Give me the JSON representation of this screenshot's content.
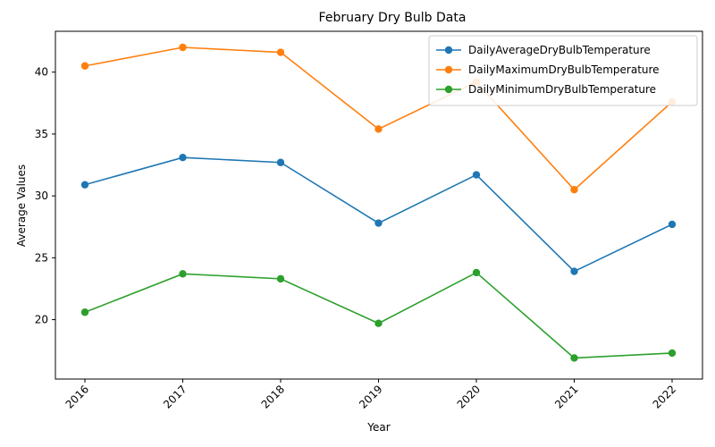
{
  "chart_data": {
    "type": "line",
    "title": "February Dry Bulb Data",
    "xlabel": "Year",
    "ylabel": "Average Values",
    "categories": [
      "2016",
      "2017",
      "2018",
      "2019",
      "2020",
      "2021",
      "2022"
    ],
    "ylim": [
      15.2,
      43.3
    ],
    "yticks": [
      20,
      25,
      30,
      35,
      40
    ],
    "grid": false,
    "legend_position": "top-right",
    "x_tick_rotation": 45,
    "series": [
      {
        "name": "DailyAverageDryBulbTemperature",
        "color": "#1f77b4",
        "marker": "circle",
        "values": [
          30.9,
          33.1,
          32.7,
          27.8,
          31.7,
          23.9,
          27.7
        ]
      },
      {
        "name": "DailyMaximumDryBulbTemperature",
        "color": "#ff7f0e",
        "marker": "circle",
        "values": [
          40.5,
          42.0,
          41.6,
          35.4,
          39.2,
          30.5,
          37.6
        ]
      },
      {
        "name": "DailyMinimumDryBulbTemperature",
        "color": "#2ca02c",
        "marker": "circle",
        "values": [
          20.6,
          23.7,
          23.3,
          19.7,
          23.8,
          16.9,
          17.3
        ]
      }
    ]
  }
}
